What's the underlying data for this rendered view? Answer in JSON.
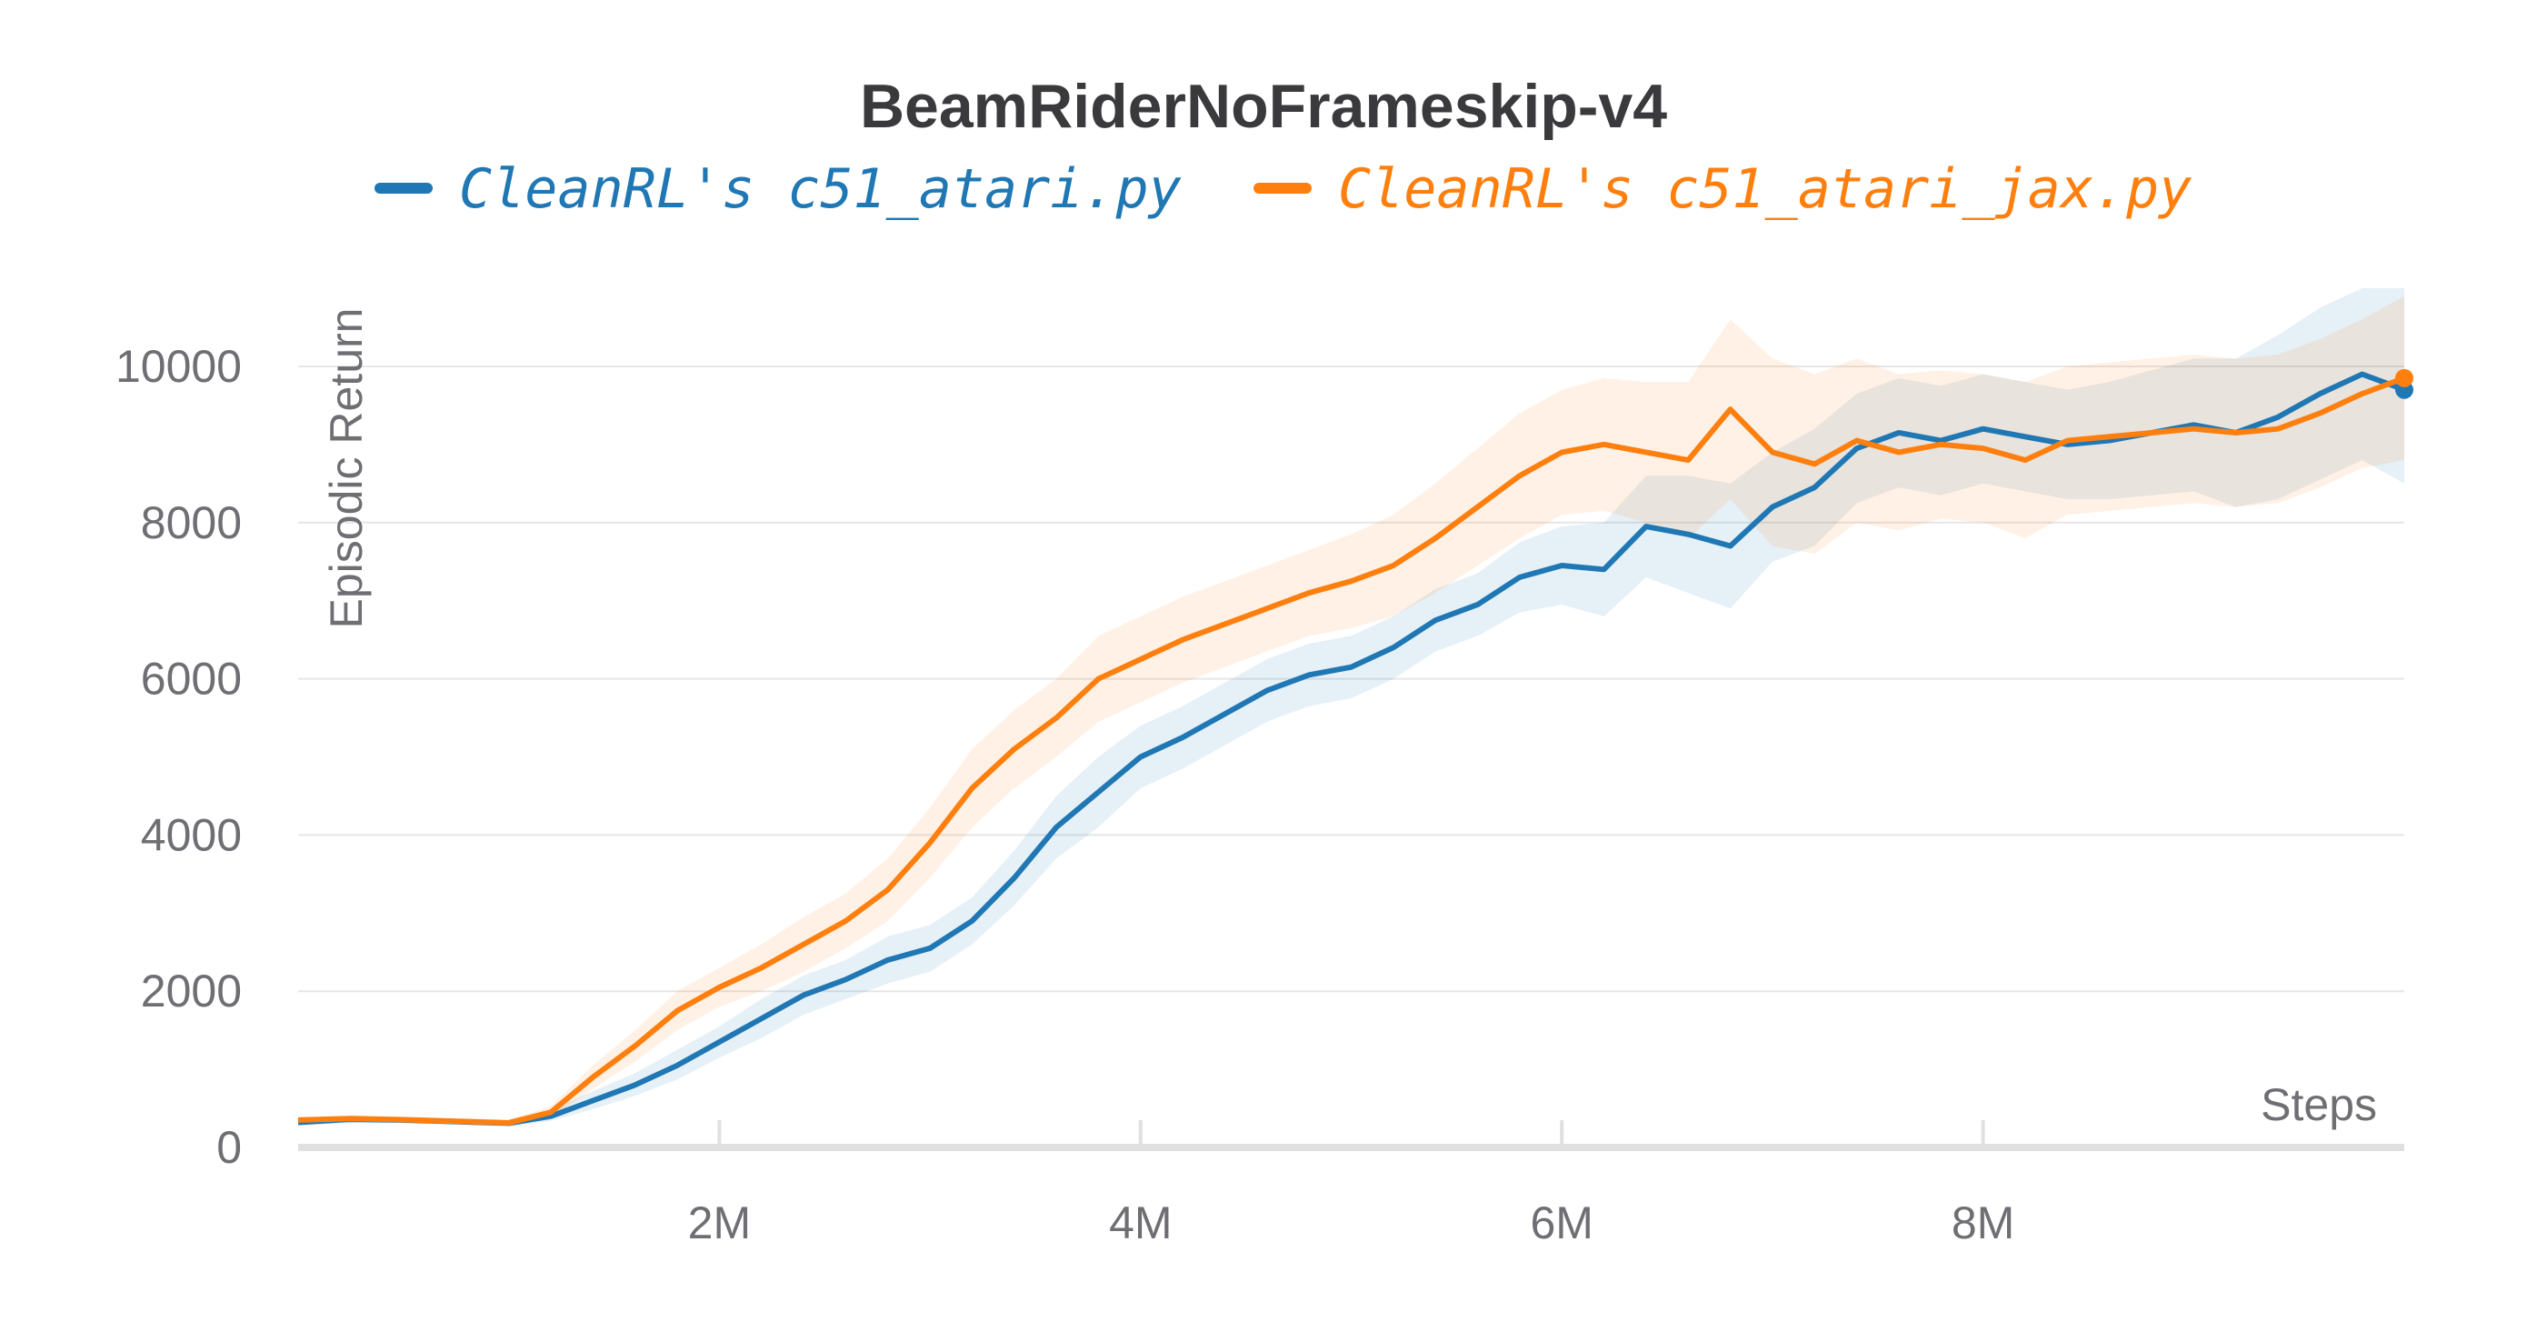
{
  "chart_data": {
    "type": "line",
    "title": "BeamRiderNoFrameskip-v4",
    "xlabel": "Steps",
    "ylabel": "Episodic Return",
    "xlim": [
      0,
      10000000
    ],
    "ylim": [
      0,
      10500
    ],
    "grid": true,
    "legend_position": "top-center",
    "x_ticks": [
      {
        "value": 2000000,
        "label": "2M"
      },
      {
        "value": 4000000,
        "label": "4M"
      },
      {
        "value": 6000000,
        "label": "6M"
      },
      {
        "value": 8000000,
        "label": "8M"
      }
    ],
    "y_ticks": [
      {
        "value": 0,
        "label": "0"
      },
      {
        "value": 2000,
        "label": "2000"
      },
      {
        "value": 4000,
        "label": "4000"
      },
      {
        "value": 6000,
        "label": "6000"
      },
      {
        "value": 8000,
        "label": "8000"
      },
      {
        "value": 10000,
        "label": "10000"
      }
    ],
    "series": [
      {
        "name": "CleanRL's c51_atari.py",
        "color": "#1f77b4",
        "x": [
          0,
          250000,
          500000,
          750000,
          1000000,
          1200000,
          1400000,
          1600000,
          1800000,
          2000000,
          2200000,
          2400000,
          2600000,
          2800000,
          3000000,
          3200000,
          3400000,
          3600000,
          3800000,
          4000000,
          4200000,
          4400000,
          4600000,
          4800000,
          5000000,
          5200000,
          5400000,
          5600000,
          5800000,
          6000000,
          6200000,
          6400000,
          6600000,
          6800000,
          7000000,
          7200000,
          7400000,
          7600000,
          7800000,
          8000000,
          8200000,
          8400000,
          8600000,
          8800000,
          9000000,
          9200000,
          9400000,
          9600000,
          9800000,
          10000000
        ],
        "y": [
          320,
          360,
          350,
          330,
          310,
          400,
          600,
          800,
          1050,
          1350,
          1650,
          1950,
          2150,
          2400,
          2550,
          2900,
          3450,
          4100,
          4550,
          5000,
          5250,
          5550,
          5850,
          6050,
          6150,
          6400,
          6750,
          6950,
          7300,
          7450,
          7400,
          7950,
          7850,
          7700,
          8200,
          8450,
          8950,
          9150,
          9050,
          9200,
          9100,
          9000,
          9050,
          9150,
          9250,
          9150,
          9350,
          9650,
          9900,
          9700
        ],
        "upper": [
          360,
          400,
          390,
          370,
          350,
          480,
          720,
          950,
          1250,
          1550,
          1900,
          2200,
          2400,
          2700,
          2850,
          3200,
          3800,
          4500,
          5000,
          5400,
          5650,
          5950,
          6250,
          6450,
          6550,
          6800,
          7150,
          7350,
          7750,
          7950,
          8000,
          8600,
          8600,
          8500,
          8900,
          9200,
          9650,
          9850,
          9750,
          9900,
          9800,
          9700,
          9800,
          9950,
          10100,
          10100,
          10400,
          10750,
          11000,
          11000
        ],
        "lower": [
          280,
          320,
          310,
          290,
          270,
          340,
          490,
          660,
          870,
          1150,
          1400,
          1700,
          1900,
          2100,
          2250,
          2600,
          3100,
          3700,
          4100,
          4600,
          4850,
          5150,
          5450,
          5650,
          5750,
          6000,
          6350,
          6550,
          6850,
          6950,
          6800,
          7300,
          7100,
          6900,
          7500,
          7700,
          8250,
          8450,
          8350,
          8500,
          8400,
          8300,
          8300,
          8350,
          8400,
          8200,
          8300,
          8550,
          8800,
          8500
        ]
      },
      {
        "name": "CleanRL's c51_atari_jax.py",
        "color": "#ff7f0e",
        "x": [
          0,
          250000,
          500000,
          750000,
          1000000,
          1200000,
          1400000,
          1600000,
          1800000,
          2000000,
          2200000,
          2400000,
          2600000,
          2800000,
          3000000,
          3200000,
          3400000,
          3600000,
          3800000,
          4000000,
          4200000,
          4400000,
          4600000,
          4800000,
          5000000,
          5200000,
          5400000,
          5600000,
          5800000,
          6000000,
          6200000,
          6400000,
          6600000,
          6800000,
          7000000,
          7200000,
          7400000,
          7600000,
          7800000,
          8000000,
          8200000,
          8400000,
          8600000,
          8800000,
          9000000,
          9200000,
          9400000,
          9600000,
          9800000,
          10000000
        ],
        "y": [
          350,
          370,
          355,
          335,
          315,
          450,
          900,
          1300,
          1750,
          2050,
          2300,
          2600,
          2900,
          3300,
          3900,
          4600,
          5100,
          5500,
          6000,
          6250,
          6500,
          6700,
          6900,
          7100,
          7250,
          7450,
          7800,
          8200,
          8600,
          8900,
          9000,
          8900,
          8800,
          9450,
          8900,
          8750,
          9050,
          8900,
          9000,
          8950,
          8800,
          9050,
          9100,
          9150,
          9200,
          9150,
          9200,
          9400,
          9650,
          9850
        ],
        "upper": [
          390,
          410,
          395,
          375,
          355,
          530,
          1050,
          1500,
          2000,
          2300,
          2600,
          2950,
          3250,
          3700,
          4350,
          5100,
          5600,
          6000,
          6550,
          6800,
          7050,
          7250,
          7450,
          7650,
          7850,
          8100,
          8500,
          8950,
          9400,
          9700,
          9850,
          9800,
          9800,
          10600,
          10100,
          9900,
          10100,
          9900,
          9950,
          9900,
          9800,
          10000,
          10050,
          10100,
          10150,
          10100,
          10150,
          10350,
          10600,
          10900
        ],
        "lower": [
          310,
          330,
          315,
          295,
          275,
          370,
          750,
          1100,
          1500,
          1800,
          2000,
          2250,
          2550,
          2900,
          3450,
          4100,
          4600,
          5000,
          5450,
          5700,
          5950,
          6150,
          6350,
          6550,
          6650,
          6800,
          7100,
          7450,
          7800,
          8100,
          8150,
          8000,
          7800,
          8300,
          7700,
          7600,
          8000,
          7900,
          8050,
          8000,
          7800,
          8100,
          8150,
          8200,
          8250,
          8200,
          8250,
          8450,
          8700,
          8800
        ]
      }
    ]
  }
}
